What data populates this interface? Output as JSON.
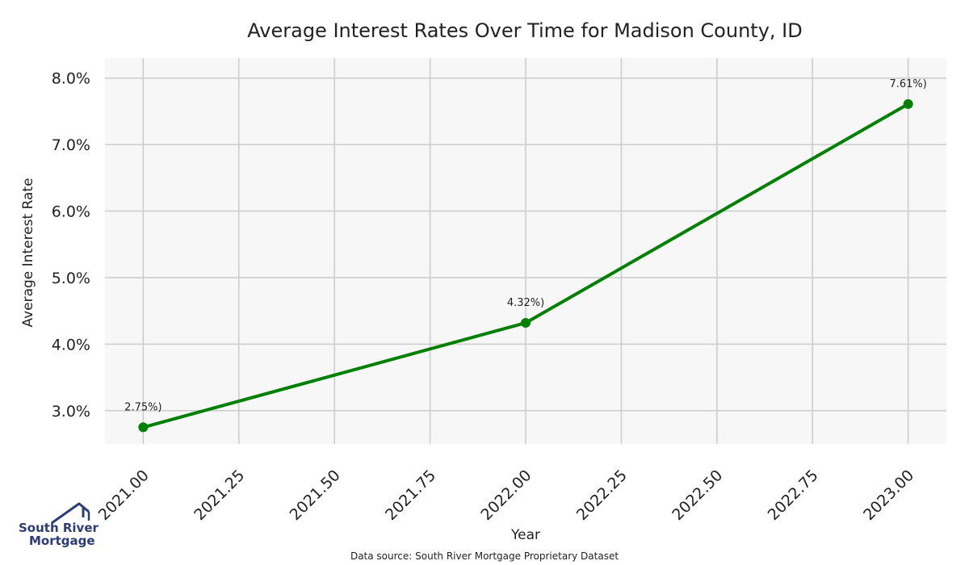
{
  "chart_data": {
    "type": "line",
    "title": "Average Interest Rates Over Time for Madison County, ID",
    "xlabel": "Year",
    "ylabel": "Average Interest Rate",
    "xlim": [
      2020.9,
      2023.1
    ],
    "ylim": [
      2.5,
      8.3
    ],
    "x_ticks": [
      2021.0,
      2021.25,
      2021.5,
      2021.75,
      2022.0,
      2022.25,
      2022.5,
      2022.75,
      2023.0
    ],
    "x_tick_labels": [
      "2021.00",
      "2021.25",
      "2021.50",
      "2021.75",
      "2022.00",
      "2022.25",
      "2022.50",
      "2022.75",
      "2023.00"
    ],
    "y_ticks": [
      3,
      4,
      5,
      6,
      7,
      8
    ],
    "y_tick_labels": [
      "3.0%",
      "4.0%",
      "5.0%",
      "6.0%",
      "7.0%",
      "8.0%"
    ],
    "grid": true,
    "series": [
      {
        "x": [
          2021,
          2022,
          2023
        ],
        "values": [
          2.75,
          4.32,
          7.61
        ],
        "labels": [
          "2.75%)",
          "4.32%)",
          "7.61%)"
        ],
        "color": "#008000"
      }
    ],
    "plot_background": "#f7f7f7",
    "grid_color": "#cccccc"
  },
  "footer": {
    "source": "Data source: South River Mortgage Proprietary Dataset"
  },
  "logo": {
    "line1": "South River",
    "line2": "Mortgage",
    "color": "#2c3d76"
  }
}
